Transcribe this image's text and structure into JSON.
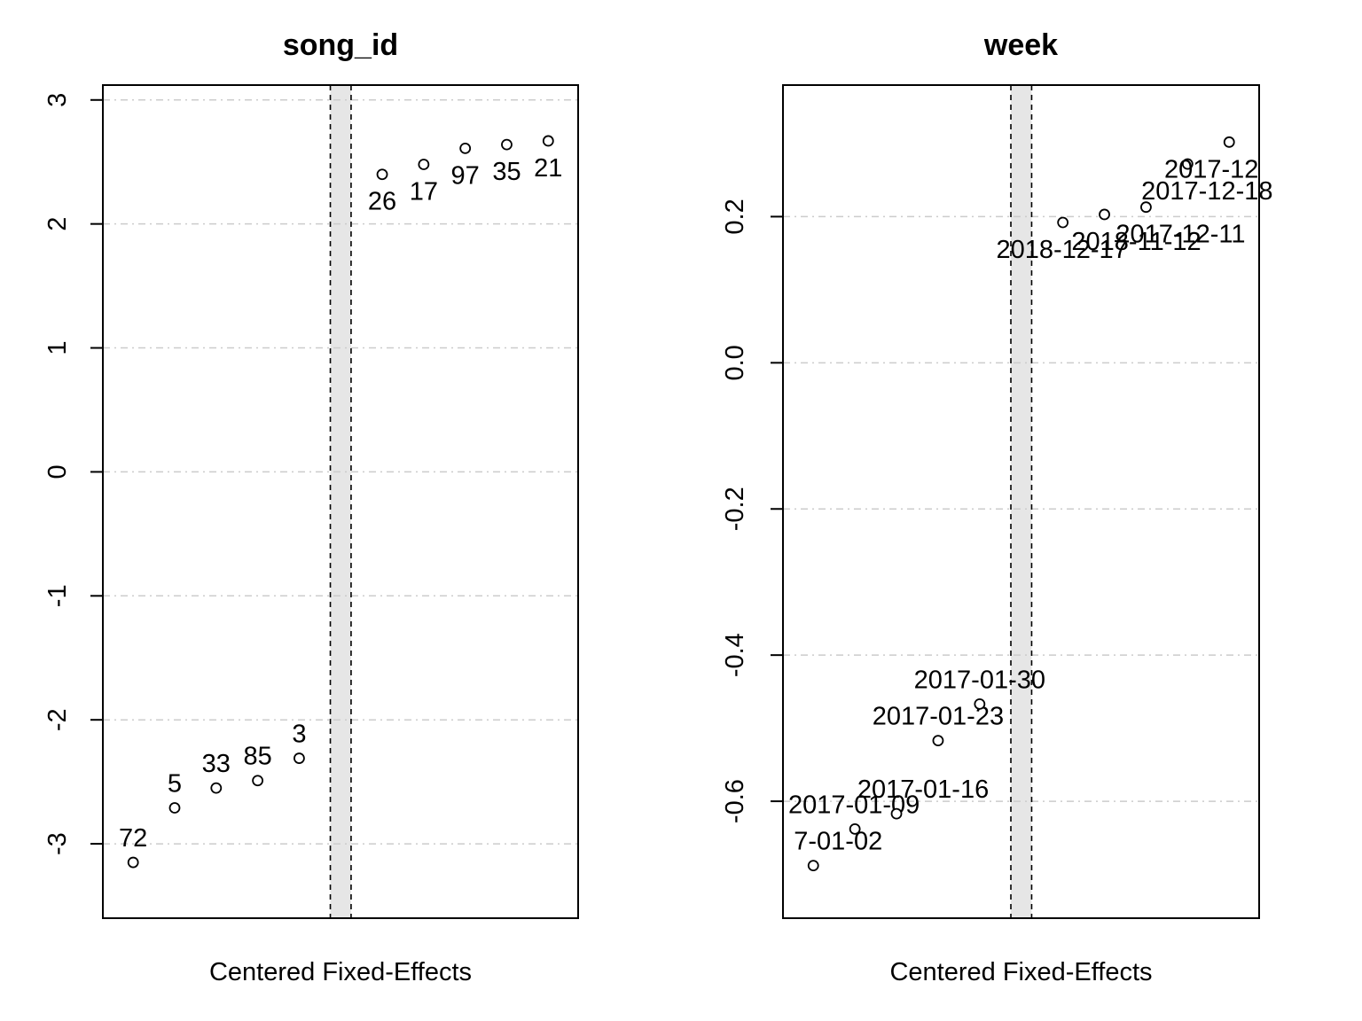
{
  "chart_data": [
    {
      "type": "scatter",
      "title": "song_id",
      "xlabel": "Centered Fixed-Effects",
      "ylabel": "",
      "ylim": [
        -3.6,
        3.12
      ],
      "yticks": [
        -3,
        -2,
        -1,
        0,
        1,
        2,
        3
      ],
      "ytick_labels": [
        "-3",
        "-2",
        "-1",
        "0",
        "1",
        "2",
        "3"
      ],
      "grid": true,
      "gap_after_index": 4,
      "points": [
        {
          "label": "72",
          "value": -3.15
        },
        {
          "label": "5",
          "value": -2.71
        },
        {
          "label": "33",
          "value": -2.55
        },
        {
          "label": "85",
          "value": -2.49
        },
        {
          "label": "3",
          "value": -2.31
        },
        {
          "label": "26",
          "value": 2.4
        },
        {
          "label": "17",
          "value": 2.48
        },
        {
          "label": "97",
          "value": 2.61
        },
        {
          "label": "35",
          "value": 2.64
        },
        {
          "label": "21",
          "value": 2.67
        }
      ]
    },
    {
      "type": "scatter",
      "title": "week",
      "xlabel": "Centered Fixed-Effects",
      "ylabel": "",
      "ylim": [
        -0.76,
        0.38
      ],
      "yticks": [
        -0.6,
        -0.4,
        -0.2,
        0.0,
        0.2
      ],
      "ytick_labels": [
        "-0.6",
        "-0.4",
        "-0.2",
        "0.0",
        "0.2"
      ],
      "grid": true,
      "gap_after_index": 4,
      "points": [
        {
          "label": "7-01-02",
          "value": -0.688
        },
        {
          "label": "2017-01-09",
          "value": -0.638
        },
        {
          "label": "2017-01-16",
          "value": -0.617
        },
        {
          "label": "2017-01-23",
          "value": -0.517
        },
        {
          "label": "2017-01-30",
          "value": -0.467
        },
        {
          "label": "2018-12-17",
          "value": 0.192
        },
        {
          "label": "2018-11-12",
          "value": 0.203
        },
        {
          "label": "2017-12-11",
          "value": 0.213
        },
        {
          "label": "2017-12-18",
          "value": 0.272
        },
        {
          "label": "2017-12",
          "value": 0.302
        }
      ]
    }
  ]
}
